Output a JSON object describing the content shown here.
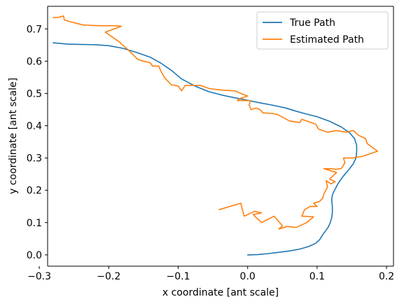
{
  "chart_data": {
    "type": "line",
    "title": "",
    "xlabel": "x coordinate [ant scale]",
    "ylabel": "y coordinate [ant scale]",
    "xlim": [
      -0.288,
      0.21
    ],
    "ylim": [
      -0.035,
      0.77
    ],
    "xticks": [
      -0.3,
      -0.2,
      -0.1,
      0.0,
      0.1,
      0.2
    ],
    "xtick_labels": [
      "−0.3",
      "−0.2",
      "−0.1",
      "0.0",
      "0.1",
      "0.2"
    ],
    "yticks": [
      0.0,
      0.1,
      0.2,
      0.3,
      0.4,
      0.5,
      0.6,
      0.7
    ],
    "ytick_labels": [
      "0.0",
      "0.1",
      "0.2",
      "0.3",
      "0.4",
      "0.5",
      "0.6",
      "0.7"
    ],
    "grid": false,
    "legend_position": "top-right",
    "series": [
      {
        "name": "True Path",
        "color": "#1f77b4",
        "points": [
          [
            0.0,
            0.0
          ],
          [
            0.015,
            0.001
          ],
          [
            0.03,
            0.004
          ],
          [
            0.045,
            0.008
          ],
          [
            0.06,
            0.012
          ],
          [
            0.075,
            0.018
          ],
          [
            0.088,
            0.026
          ],
          [
            0.098,
            0.036
          ],
          [
            0.104,
            0.048
          ],
          [
            0.108,
            0.062
          ],
          [
            0.112,
            0.074
          ],
          [
            0.116,
            0.086
          ],
          [
            0.119,
            0.1
          ],
          [
            0.121,
            0.115
          ],
          [
            0.122,
            0.13
          ],
          [
            0.122,
            0.15
          ],
          [
            0.121,
            0.17
          ],
          [
            0.122,
            0.185
          ],
          [
            0.125,
            0.2
          ],
          [
            0.13,
            0.22
          ],
          [
            0.137,
            0.242
          ],
          [
            0.145,
            0.262
          ],
          [
            0.152,
            0.282
          ],
          [
            0.156,
            0.3
          ],
          [
            0.157,
            0.32
          ],
          [
            0.157,
            0.34
          ],
          [
            0.154,
            0.36
          ],
          [
            0.147,
            0.378
          ],
          [
            0.135,
            0.396
          ],
          [
            0.118,
            0.414
          ],
          [
            0.1,
            0.428
          ],
          [
            0.085,
            0.436
          ],
          [
            0.07,
            0.445
          ],
          [
            0.055,
            0.455
          ],
          [
            0.035,
            0.464
          ],
          [
            0.015,
            0.472
          ],
          [
            0.0,
            0.479
          ],
          [
            -0.015,
            0.485
          ],
          [
            -0.035,
            0.494
          ],
          [
            -0.055,
            0.505
          ],
          [
            -0.075,
            0.522
          ],
          [
            -0.095,
            0.545
          ],
          [
            -0.11,
            0.572
          ],
          [
            -0.125,
            0.594
          ],
          [
            -0.14,
            0.612
          ],
          [
            -0.16,
            0.627
          ],
          [
            -0.18,
            0.64
          ],
          [
            -0.2,
            0.648
          ],
          [
            -0.22,
            0.651
          ],
          [
            -0.24,
            0.652
          ],
          [
            -0.26,
            0.653
          ],
          [
            -0.28,
            0.657
          ]
        ]
      },
      {
        "name": "Estimated Path",
        "color": "#ff7f0e",
        "points": [
          [
            -0.041,
            0.14
          ],
          [
            -0.01,
            0.16
          ],
          [
            -0.005,
            0.12
          ],
          [
            0.01,
            0.135
          ],
          [
            0.02,
            0.13
          ],
          [
            0.008,
            0.125
          ],
          [
            0.02,
            0.1
          ],
          [
            0.038,
            0.12
          ],
          [
            0.05,
            0.09
          ],
          [
            0.045,
            0.08
          ],
          [
            0.057,
            0.088
          ],
          [
            0.07,
            0.085
          ],
          [
            0.085,
            0.1
          ],
          [
            0.095,
            0.118
          ],
          [
            0.078,
            0.12
          ],
          [
            0.082,
            0.14
          ],
          [
            0.09,
            0.15
          ],
          [
            0.1,
            0.15
          ],
          [
            0.095,
            0.16
          ],
          [
            0.103,
            0.165
          ],
          [
            0.108,
            0.175
          ],
          [
            0.11,
            0.19
          ],
          [
            0.115,
            0.21
          ],
          [
            0.113,
            0.23
          ],
          [
            0.12,
            0.22
          ],
          [
            0.126,
            0.227
          ],
          [
            0.118,
            0.235
          ],
          [
            0.128,
            0.255
          ],
          [
            0.11,
            0.267
          ],
          [
            0.12,
            0.267
          ],
          [
            0.128,
            0.265
          ],
          [
            0.135,
            0.268
          ],
          [
            0.14,
            0.285
          ],
          [
            0.138,
            0.3
          ],
          [
            0.15,
            0.3
          ],
          [
            0.165,
            0.305
          ],
          [
            0.187,
            0.321
          ],
          [
            0.172,
            0.345
          ],
          [
            0.17,
            0.36
          ],
          [
            0.16,
            0.37
          ],
          [
            0.152,
            0.385
          ],
          [
            0.142,
            0.38
          ],
          [
            0.128,
            0.385
          ],
          [
            0.115,
            0.38
          ],
          [
            0.102,
            0.39
          ],
          [
            0.098,
            0.405
          ],
          [
            0.078,
            0.42
          ],
          [
            0.075,
            0.41
          ],
          [
            0.06,
            0.415
          ],
          [
            0.043,
            0.435
          ],
          [
            0.035,
            0.438
          ],
          [
            0.022,
            0.44
          ],
          [
            0.018,
            0.45
          ],
          [
            0.012,
            0.455
          ],
          [
            0.005,
            0.45
          ],
          [
            0.002,
            0.465
          ],
          [
            0.004,
            0.478
          ],
          [
            -0.015,
            0.478
          ],
          [
            -0.01,
            0.485
          ],
          [
            0.0,
            0.492
          ],
          [
            -0.01,
            0.5
          ],
          [
            -0.018,
            0.508
          ],
          [
            -0.035,
            0.51
          ],
          [
            -0.055,
            0.515
          ],
          [
            -0.068,
            0.525
          ],
          [
            -0.078,
            0.525
          ],
          [
            -0.09,
            0.525
          ],
          [
            -0.095,
            0.508
          ],
          [
            -0.1,
            0.523
          ],
          [
            -0.11,
            0.527
          ],
          [
            -0.12,
            0.55
          ],
          [
            -0.125,
            0.57
          ],
          [
            -0.128,
            0.585
          ],
          [
            -0.137,
            0.585
          ],
          [
            -0.14,
            0.595
          ],
          [
            -0.15,
            0.6
          ],
          [
            -0.158,
            0.605
          ],
          [
            -0.165,
            0.62
          ],
          [
            -0.172,
            0.635
          ],
          [
            -0.18,
            0.65
          ],
          [
            -0.185,
            0.66
          ],
          [
            -0.195,
            0.675
          ],
          [
            -0.205,
            0.69
          ],
          [
            -0.182,
            0.708
          ],
          [
            -0.19,
            0.71
          ],
          [
            -0.215,
            0.71
          ],
          [
            -0.237,
            0.712
          ],
          [
            -0.255,
            0.722
          ],
          [
            -0.264,
            0.728
          ],
          [
            -0.265,
            0.74
          ],
          [
            -0.272,
            0.736
          ],
          [
            -0.28,
            0.735
          ]
        ]
      }
    ]
  }
}
